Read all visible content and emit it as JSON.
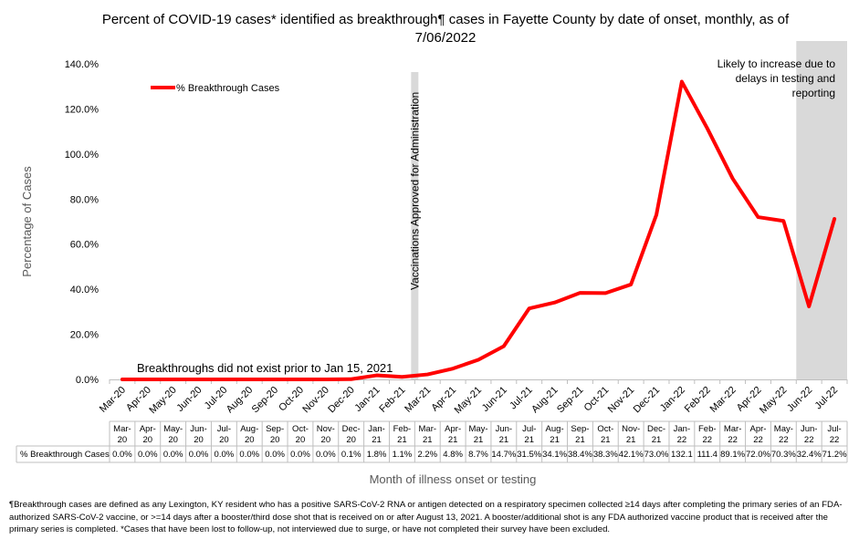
{
  "chart_data": {
    "type": "line",
    "title": "Percent of COVID-19 cases* identified as breakthrough¶ cases in Fayette County by date of onset, monthly, as of 7/06/2022",
    "title_lines": [
      "Percent of COVID-19 cases* identified as breakthrough¶ cases in Fayette County by date of onset, monthly, as of",
      "7/06/2022"
    ],
    "xlabel": "Month of illness onset or testing",
    "ylabel": "Percentage of Cases",
    "ylim": [
      0,
      140
    ],
    "y_ticks": [
      0,
      20,
      40,
      60,
      80,
      100,
      120,
      140
    ],
    "y_tick_labels": [
      "0.0%",
      "20.0%",
      "40.0%",
      "60.0%",
      "80.0%",
      "100.0%",
      "120.0%",
      "140.0%"
    ],
    "grid": false,
    "legend_position": "top-left",
    "categories": [
      "Mar-20",
      "Apr-20",
      "May-20",
      "Jun-20",
      "Jul-20",
      "Aug-20",
      "Sep-20",
      "Oct-20",
      "Nov-20",
      "Dec-20",
      "Jan-21",
      "Feb-21",
      "Mar-21",
      "Apr-21",
      "May-21",
      "Jun-21",
      "Jul-21",
      "Aug-21",
      "Sep-21",
      "Oct-21",
      "Nov-21",
      "Dec-21",
      "Jan-22",
      "Feb-22",
      "Mar-22",
      "Apr-22",
      "May-22",
      "Jun-22",
      "Jul-22"
    ],
    "table_categories": [
      [
        "Mar-",
        "20"
      ],
      [
        "Apr-",
        "20"
      ],
      [
        "May-",
        "20"
      ],
      [
        "Jun-",
        "20"
      ],
      [
        "Jul-",
        "20"
      ],
      [
        "Aug-",
        "20"
      ],
      [
        "Sep-",
        "20"
      ],
      [
        "Oct-",
        "20"
      ],
      [
        "Nov-",
        "20"
      ],
      [
        "Dec-",
        "20"
      ],
      [
        "Jan-",
        "21"
      ],
      [
        "Feb-",
        "21"
      ],
      [
        "Mar-",
        "21"
      ],
      [
        "Apr-",
        "21"
      ],
      [
        "May-",
        "21"
      ],
      [
        "Jun-",
        "21"
      ],
      [
        "Jul-",
        "21"
      ],
      [
        "Aug-",
        "21"
      ],
      [
        "Sep-",
        "21"
      ],
      [
        "Oct-",
        "21"
      ],
      [
        "Nov-",
        "21"
      ],
      [
        "Dec-",
        "21"
      ],
      [
        "Jan-",
        "22"
      ],
      [
        "Feb-",
        "22"
      ],
      [
        "Mar-",
        "22"
      ],
      [
        "Apr-",
        "22"
      ],
      [
        "May-",
        "22"
      ],
      [
        "Jun-",
        "22"
      ],
      [
        "Jul-",
        "22"
      ]
    ],
    "series": [
      {
        "name": "% Breakthrough Cases",
        "color": "#ff0000",
        "values": [
          0.0,
          0.0,
          0.0,
          0.0,
          0.0,
          0.0,
          0.0,
          0.0,
          0.0,
          0.1,
          1.8,
          1.1,
          2.2,
          4.8,
          8.7,
          14.7,
          31.5,
          34.1,
          38.4,
          38.3,
          42.1,
          73.0,
          132.1,
          111.4,
          89.1,
          72.0,
          70.3,
          32.4,
          71.2
        ],
        "table_values": [
          "0.0%",
          "0.0%",
          "0.0%",
          "0.0%",
          "0.0%",
          "0.0%",
          "0.0%",
          "0.0%",
          "0.0%",
          "0.1%",
          "1.8%",
          "1.1%",
          "2.2%",
          "4.8%",
          "8.7%",
          "14.7%",
          "31.5%",
          "34.1%",
          "38.4%",
          "38.3%",
          "42.1%",
          "73.0%",
          "132.1",
          "111.4",
          "89.1%",
          "72.0%",
          "70.3%",
          "32.4%",
          "71.2%"
        ]
      }
    ],
    "annotations": {
      "vaccination_line": {
        "after_category": "Feb-21",
        "text": "Vaccinations Approved for Administration",
        "color": "#d9d9d9"
      },
      "pre_breakthrough": "Breakthroughs did not exist prior to Jan 15, 2021",
      "shaded_region": {
        "categories": [
          "Jun-22",
          "Jul-22"
        ],
        "color": "#d9d9d9",
        "lines": [
          "Likely to increase due to",
          "delays in testing and",
          "reporting"
        ]
      }
    }
  },
  "footnote": "¶Breakthrough cases are defined as any Lexington, KY resident who has a positive SARS-CoV-2 RNA or antigen detected on a respiratory specimen collected ≥14 days after completing the primary series of an FDA-authorized SARS-CoV-2 vaccine, or >=14 days after a booster/third dose shot that is received on or after August 13, 2021.  A booster/additional shot is any FDA authorized vaccine product that is received after the primary series is completed. *Cases that have been lost to follow-up, not interviewed due to surge, or have not completed their survey have been excluded."
}
